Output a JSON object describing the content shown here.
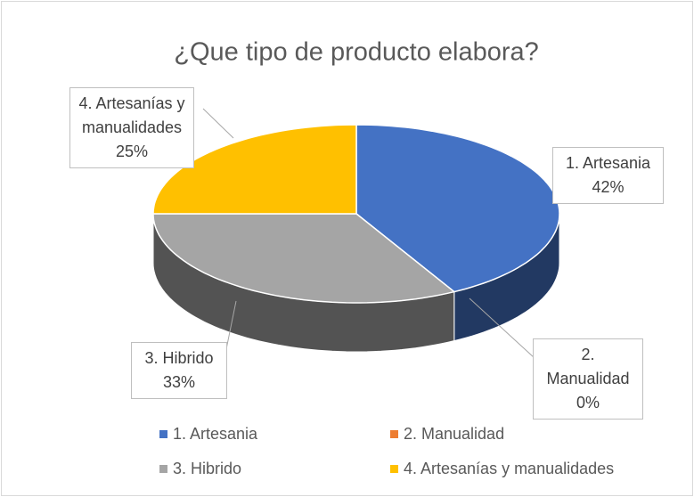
{
  "chart_data": {
    "type": "pie",
    "title": "¿Que tipo de producto elabora?",
    "categories": [
      "1. Artesania",
      "2. Manualidad",
      "3. Hibrido",
      "4. Artesanías y manualidades"
    ],
    "values": [
      42,
      0,
      33,
      25
    ],
    "value_labels": [
      "42%",
      "0%",
      "33%",
      "25%"
    ],
    "colors": [
      "#4472c4",
      "#ed7d31",
      "#a5a5a5",
      "#ffc000"
    ],
    "legend": "bottom"
  }
}
